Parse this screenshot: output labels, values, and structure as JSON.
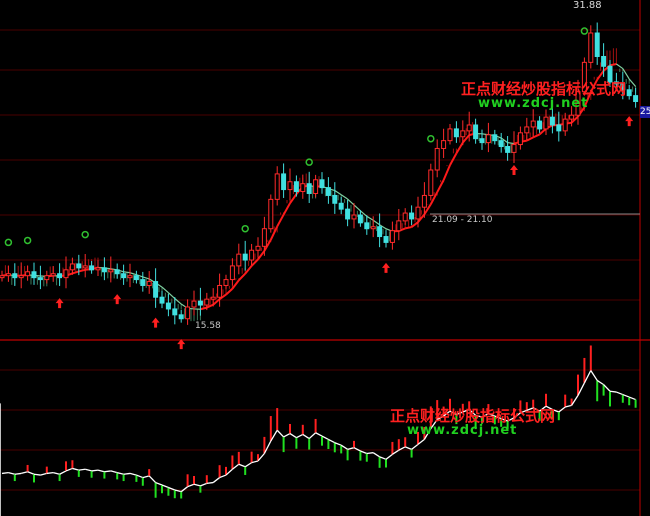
{
  "chart_data": {
    "type": "candlestick",
    "panels": [
      "price",
      "indicator"
    ],
    "ylim": [
      15.58,
      31.88
    ],
    "high_label": "31.88",
    "low_label": "15.58",
    "range_label": "21.09 - 21.10",
    "right_price_tag": "25",
    "closes": [
      18.1,
      18.2,
      18.0,
      18.1,
      18.3,
      18.0,
      17.9,
      18.1,
      18.2,
      18.0,
      18.4,
      18.7,
      18.5,
      18.6,
      18.4,
      18.5,
      18.3,
      18.4,
      18.2,
      18.0,
      18.1,
      17.9,
      17.6,
      17.8,
      17.0,
      16.7,
      16.4,
      16.1,
      15.9,
      16.5,
      16.8,
      16.6,
      16.9,
      17.0,
      17.6,
      17.9,
      18.6,
      19.2,
      18.9,
      19.4,
      19.6,
      20.5,
      22.0,
      23.3,
      22.5,
      22.9,
      22.4,
      22.8,
      22.3,
      23.0,
      22.6,
      22.2,
      21.8,
      21.5,
      21.0,
      21.2,
      20.8,
      20.5,
      20.6,
      20.1,
      19.8,
      20.4,
      20.9,
      21.3,
      21.0,
      21.6,
      22.2,
      23.5,
      24.6,
      25.0,
      25.6,
      25.2,
      25.5,
      25.8,
      25.1,
      24.9,
      25.3,
      25.0,
      24.7,
      24.4,
      24.8,
      25.4,
      25.7,
      26.0,
      25.6,
      26.2,
      25.8,
      25.5,
      26.1,
      26.3,
      27.5,
      29.0,
      30.5,
      29.3,
      28.8,
      28.0,
      27.9,
      27.6,
      27.3,
      27.0
    ],
    "buy_signals": [
      9,
      18,
      24,
      28,
      60,
      80,
      98
    ],
    "sell_signals": [
      1,
      4,
      13,
      38,
      48,
      67,
      91
    ],
    "colors": {
      "up": "#ff2a2a",
      "down": "#40e0e0",
      "ma_up": "#ff1a1a",
      "ma_down": "#7fd0a0",
      "grid": "#4a0000",
      "axis": "#c00000",
      "ind_line": "#ffffff",
      "ind_up": "#ff2020",
      "ind_down": "#20e020"
    }
  },
  "watermarks": [
    {
      "cn": "正点财经炒股指标公式网",
      "url": "www.zdcj.net"
    },
    {
      "cn": "正点财经炒股指标公式网",
      "url": "www.zdcj.net"
    }
  ]
}
